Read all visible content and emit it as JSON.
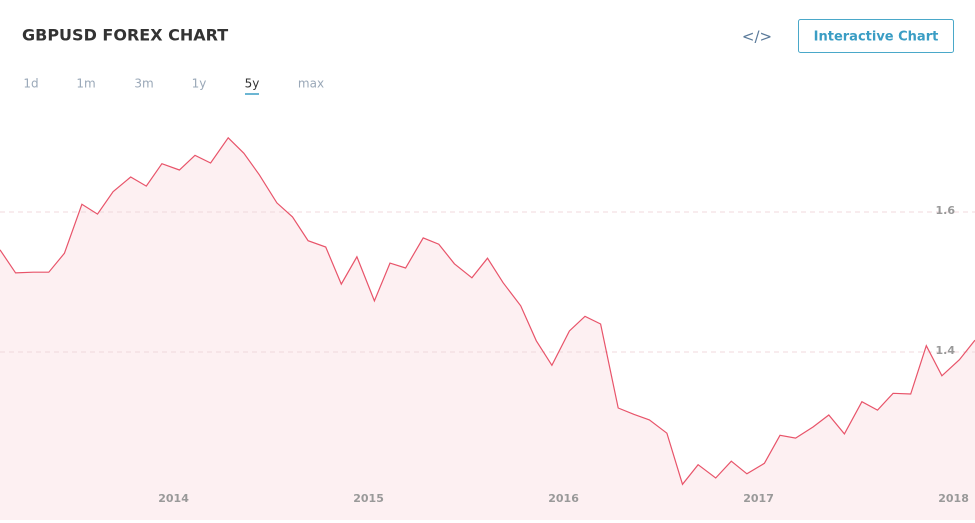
{
  "header": {
    "title": "GBPUSD FOREX CHART",
    "embed_icon": "</>",
    "button": "Interactive Chart"
  },
  "tabs": [
    "1d",
    "1m",
    "3m",
    "1y",
    "5y",
    "max"
  ],
  "active_tab": 4,
  "chart_data": {
    "type": "area",
    "x": [
      2013.11,
      2013.19,
      2013.28,
      2013.36,
      2013.44,
      2013.53,
      2013.61,
      2013.69,
      2013.78,
      2013.86,
      2013.94,
      2014.03,
      2014.11,
      2014.19,
      2014.28,
      2014.36,
      2014.44,
      2014.53,
      2014.61,
      2014.69,
      2014.78,
      2014.86,
      2014.94,
      2015.03,
      2015.11,
      2015.19,
      2015.28,
      2015.36,
      2015.44,
      2015.53,
      2015.61,
      2015.69,
      2015.78,
      2015.86,
      2015.94,
      2016.03,
      2016.11,
      2016.19,
      2016.28,
      2016.36,
      2016.44,
      2016.53,
      2016.61,
      2016.69,
      2016.78,
      2016.86,
      2016.94,
      2017.03,
      2017.11,
      2017.19,
      2017.28,
      2017.36,
      2017.44,
      2017.53,
      2017.61,
      2017.69,
      2017.78,
      2017.86,
      2017.94,
      2018.03,
      2018.11
    ],
    "values": [
      1.546,
      1.513,
      1.514,
      1.514,
      1.541,
      1.611,
      1.597,
      1.629,
      1.65,
      1.637,
      1.669,
      1.66,
      1.681,
      1.67,
      1.706,
      1.684,
      1.653,
      1.613,
      1.593,
      1.559,
      1.55,
      1.497,
      1.536,
      1.473,
      1.527,
      1.52,
      1.563,
      1.554,
      1.526,
      1.506,
      1.534,
      1.499,
      1.466,
      1.416,
      1.381,
      1.43,
      1.451,
      1.44,
      1.32,
      1.311,
      1.303,
      1.284,
      1.211,
      1.239,
      1.22,
      1.244,
      1.226,
      1.241,
      1.281,
      1.277,
      1.293,
      1.31,
      1.283,
      1.329,
      1.317,
      1.341,
      1.34,
      1.409,
      1.366,
      1.389,
      1.417
    ],
    "color": "#e8546a",
    "fill": "#fdf0f2",
    "xlim": [
      2013.11,
      2018.11
    ],
    "xticks": [
      2014,
      2015,
      2016,
      2017,
      2018
    ],
    "ylim": [
      1.16,
      1.76
    ],
    "yticks": [
      1.4,
      1.6
    ],
    "grid": true
  }
}
